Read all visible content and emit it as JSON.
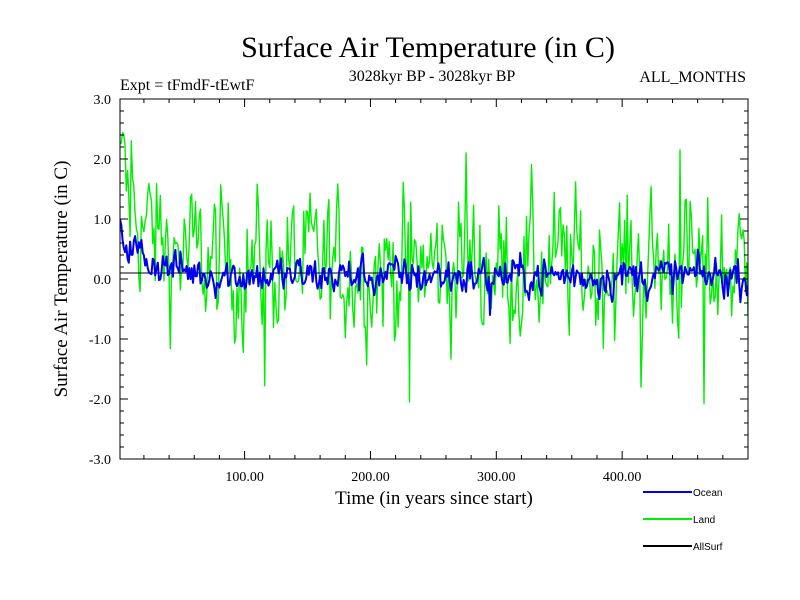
{
  "chart_data": {
    "type": "line",
    "title": "Surface Air Temperature (in C)",
    "subtitle_left": "Expt = tFmdF-tEwtF",
    "subtitle_center": "3028kyr BP - 3028kyr BP",
    "subtitle_right": "ALL_MONTHS",
    "xlabel": "Time (in years since start)",
    "ylabel": "Surface Air Temperature (in C)",
    "xlim": [
      1,
      500
    ],
    "ylim": [
      -3.0,
      3.0
    ],
    "xticks": [
      100,
      200,
      300,
      400
    ],
    "xtick_labels": [
      "100.00",
      "200.00",
      "300.00",
      "400.00"
    ],
    "yticks": [
      -3.0,
      -2.0,
      -1.0,
      0.0,
      1.0,
      2.0,
      3.0
    ],
    "ytick_labels": [
      "-3.0",
      "-2.0",
      "-1.0",
      "0.0",
      "1.0",
      "2.0",
      "3.0"
    ],
    "legend_position": "bottom-right",
    "series": [
      {
        "name": "Land",
        "color": "#00ee00",
        "mean": 0.2,
        "amplitude": 0.55,
        "start_offset": 1.5,
        "peaks": [
          [
            4,
            2.4
          ],
          [
            10,
            2.3
          ],
          [
            231,
            -2.05
          ],
          [
            116,
            -1.78
          ],
          [
            276,
            2.1
          ],
          [
            446,
            2.15
          ],
          [
            465,
            -2.08
          ],
          [
            415,
            -1.8
          ]
        ]
      },
      {
        "name": "Ocean",
        "color": "#0000ee",
        "mean": 0.05,
        "amplitude": 0.15,
        "start_offset": 0.7,
        "peaks": [
          [
            2,
            0.9
          ],
          [
            295,
            -0.6
          ]
        ]
      },
      {
        "name": "AllSurf",
        "color": "#000000",
        "mean": 0.1,
        "amplitude": 0.0,
        "start_offset": 0.0,
        "peaks": []
      }
    ]
  }
}
